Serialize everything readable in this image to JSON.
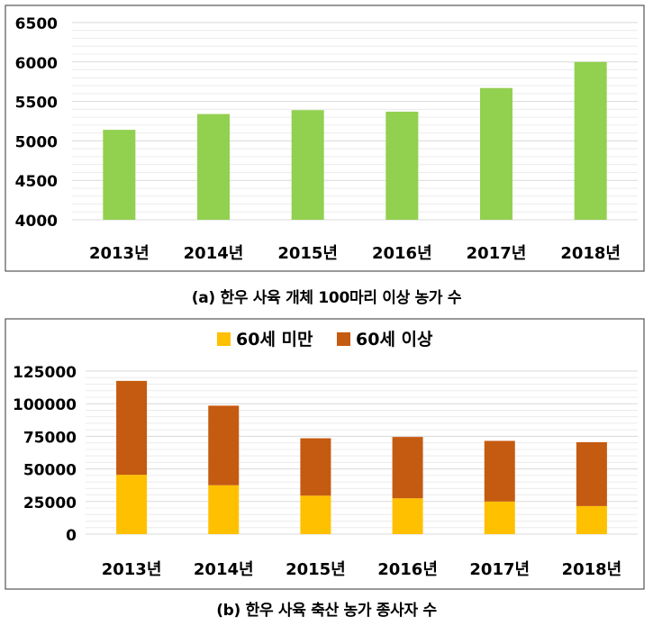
{
  "chart_data": [
    {
      "type": "bar",
      "categories": [
        "2013년",
        "2014년",
        "2015년",
        "2016년",
        "2017년",
        "2018년"
      ],
      "values": [
        5140,
        5340,
        5390,
        5370,
        5670,
        6000
      ],
      "ylim": [
        4000,
        6500
      ],
      "yticks": [
        "4000",
        "4500",
        "5000",
        "5500",
        "6000",
        "6500"
      ],
      "grid": true,
      "color": "#92d050",
      "caption": "(a) 한우 사육 개체 100마리 이상 농가 수"
    },
    {
      "type": "bar",
      "stacked": true,
      "categories": [
        "2013년",
        "2014년",
        "2015년",
        "2016년",
        "2017년",
        "2018년"
      ],
      "series": [
        {
          "name": "60세 미만",
          "values": [
            45500,
            37500,
            29500,
            27500,
            25000,
            21500
          ],
          "color": "#ffc000"
        },
        {
          "name": "60세 이상",
          "values": [
            72000,
            61000,
            44000,
            47000,
            46500,
            49000
          ],
          "color": "#c55a11"
        }
      ],
      "ylim": [
        0,
        125000
      ],
      "yticks": [
        "0",
        "25000",
        "50000",
        "75000",
        "100000",
        "125000"
      ],
      "grid": true,
      "legend": "top",
      "caption": "(b) 한우 사육 축산 농가 종사자 수"
    }
  ]
}
